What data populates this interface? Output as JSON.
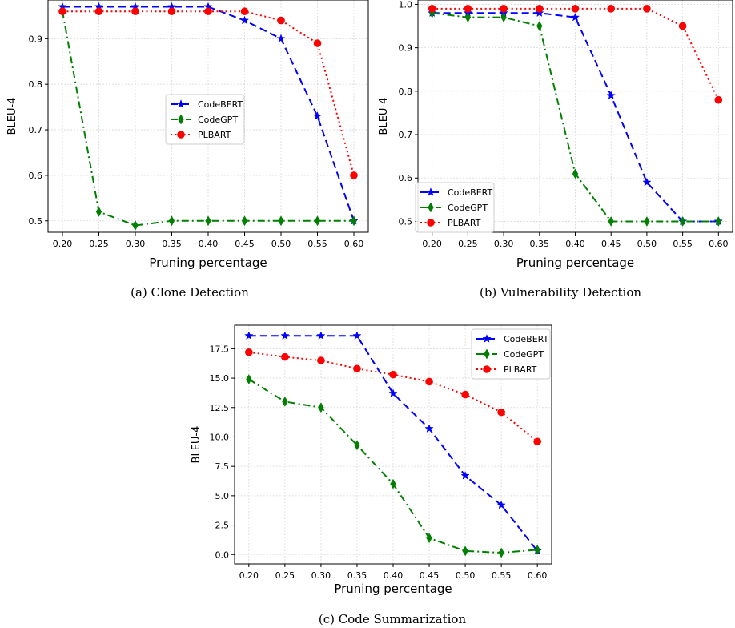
{
  "chart_data": [
    {
      "type": "line",
      "caption": "(a) Clone Detection",
      "xlabel": "Pruning percentage",
      "ylabel": "BLEU-4",
      "x": [
        0.2,
        0.25,
        0.3,
        0.35,
        0.4,
        0.45,
        0.5,
        0.55,
        0.6
      ],
      "x_tick_labels": [
        "0.20",
        "0.25",
        "0.30",
        "0.35",
        "0.40",
        "0.45",
        "0.50",
        "0.55",
        "0.60"
      ],
      "yticks": [
        0.5,
        0.6,
        0.7,
        0.8,
        0.9
      ],
      "y_tick_labels": [
        "0.5",
        "0.6",
        "0.7",
        "0.8",
        "0.9"
      ],
      "ylim": [
        0.475,
        0.985
      ],
      "grid": true,
      "legend_position": "center",
      "series": [
        {
          "name": "CodeBERT",
          "values": [
            0.97,
            0.97,
            0.97,
            0.97,
            0.97,
            0.94,
            0.9,
            0.73,
            0.5
          ],
          "color": "#0000ff",
          "marker": "star",
          "dash": "dashed"
        },
        {
          "name": "CodeGPT",
          "values": [
            0.96,
            0.52,
            0.49,
            0.5,
            0.5,
            0.5,
            0.5,
            0.5,
            0.5
          ],
          "color": "#007f00",
          "marker": "thin_diamond",
          "dash": "dashdot"
        },
        {
          "name": "PLBART",
          "values": [
            0.96,
            0.96,
            0.96,
            0.96,
            0.96,
            0.96,
            0.94,
            0.89,
            0.6
          ],
          "color": "#ff0000",
          "marker": "circle",
          "dash": "dotted"
        }
      ]
    },
    {
      "type": "line",
      "caption": "(b) Vulnerability Detection",
      "xlabel": "Pruning percentage",
      "ylabel": "BLEU-4",
      "x": [
        0.2,
        0.25,
        0.3,
        0.35,
        0.4,
        0.45,
        0.5,
        0.55,
        0.6
      ],
      "x_tick_labels": [
        "0.20",
        "0.25",
        "0.30",
        "0.35",
        "0.40",
        "0.45",
        "0.50",
        "0.55",
        "0.60"
      ],
      "yticks": [
        0.5,
        0.6,
        0.7,
        0.8,
        0.9,
        1.0
      ],
      "y_tick_labels": [
        "0.5",
        "0.6",
        "0.7",
        "0.8",
        "0.9",
        "1.0"
      ],
      "ylim": [
        0.475,
        1.01
      ],
      "grid": true,
      "legend_position": "lower left",
      "series": [
        {
          "name": "CodeBERT",
          "values": [
            0.98,
            0.98,
            0.98,
            0.98,
            0.97,
            0.79,
            0.59,
            0.5,
            0.5
          ],
          "color": "#0000ff",
          "marker": "star",
          "dash": "dashed"
        },
        {
          "name": "CodeGPT",
          "values": [
            0.98,
            0.97,
            0.97,
            0.95,
            0.61,
            0.5,
            0.5,
            0.5,
            0.5
          ],
          "color": "#007f00",
          "marker": "thin_diamond",
          "dash": "dashdot"
        },
        {
          "name": "PLBART",
          "values": [
            0.99,
            0.99,
            0.99,
            0.99,
            0.99,
            0.99,
            0.99,
            0.95,
            0.78
          ],
          "color": "#ff0000",
          "marker": "circle",
          "dash": "dotted"
        }
      ]
    },
    {
      "type": "line",
      "caption": "(c) Code Summarization",
      "xlabel": "Pruning percentage",
      "ylabel": "BLEU-4",
      "x": [
        0.2,
        0.25,
        0.3,
        0.35,
        0.4,
        0.45,
        0.5,
        0.55,
        0.6
      ],
      "x_tick_labels": [
        "0.20",
        "0.25",
        "0.30",
        "0.35",
        "0.40",
        "0.45",
        "0.50",
        "0.55",
        "0.60"
      ],
      "yticks": [
        0,
        2.5,
        5,
        7.5,
        10,
        12.5,
        15,
        17.5
      ],
      "y_tick_labels": [
        "0.0",
        "2.5",
        "5.0",
        "7.5",
        "10.0",
        "12.5",
        "15.0",
        "17.5"
      ],
      "ylim": [
        -0.8,
        19.5
      ],
      "grid": true,
      "legend_position": "upper right",
      "series": [
        {
          "name": "CodeBERT",
          "values": [
            18.6,
            18.6,
            18.6,
            18.6,
            13.7,
            10.7,
            6.7,
            4.2,
            0.3
          ],
          "color": "#0000ff",
          "marker": "star",
          "dash": "dashed"
        },
        {
          "name": "CodeGPT",
          "values": [
            14.9,
            13.0,
            12.5,
            9.3,
            6.0,
            1.4,
            0.3,
            0.15,
            0.4
          ],
          "color": "#007f00",
          "marker": "thin_diamond",
          "dash": "dashdot"
        },
        {
          "name": "PLBART",
          "values": [
            17.2,
            16.8,
            16.5,
            15.8,
            15.3,
            14.7,
            13.6,
            12.1,
            9.6
          ],
          "color": "#ff0000",
          "marker": "circle",
          "dash": "dotted"
        }
      ]
    }
  ]
}
